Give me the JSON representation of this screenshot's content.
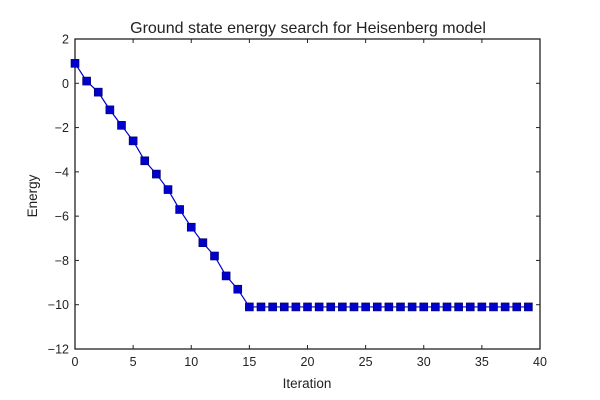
{
  "chart_data": {
    "type": "line",
    "title": "Ground state energy search for Heisenberg model",
    "xlabel": "Iteration",
    "ylabel": "Energy",
    "xlim": [
      0,
      40
    ],
    "ylim": [
      -12,
      2
    ],
    "xticks": [
      0,
      5,
      10,
      15,
      20,
      25,
      30,
      35,
      40
    ],
    "yticks": [
      2,
      0,
      -2,
      -4,
      -6,
      -8,
      -10,
      -12
    ],
    "grid": false,
    "legend": "none",
    "series": [
      {
        "color": "#0000cc",
        "marker": "square",
        "x": [
          0,
          1,
          2,
          3,
          4,
          5,
          6,
          7,
          8,
          9,
          10,
          11,
          12,
          13,
          14,
          15,
          16,
          17,
          18,
          19,
          20,
          21,
          22,
          23,
          24,
          25,
          26,
          27,
          28,
          29,
          30,
          31,
          32,
          33,
          34,
          35,
          36,
          37,
          38,
          39
        ],
        "y": [
          0.9,
          0.1,
          -0.4,
          -1.2,
          -1.9,
          -2.6,
          -3.5,
          -4.1,
          -4.8,
          -5.7,
          -6.5,
          -7.2,
          -7.8,
          -8.7,
          -9.3,
          -10.1,
          -10.1,
          -10.1,
          -10.1,
          -10.1,
          -10.1,
          -10.1,
          -10.1,
          -10.1,
          -10.1,
          -10.1,
          -10.1,
          -10.1,
          -10.1,
          -10.1,
          -10.1,
          -10.1,
          -10.1,
          -10.1,
          -10.1,
          -10.1,
          -10.1,
          -10.1,
          -10.1,
          -10.1
        ]
      }
    ]
  }
}
